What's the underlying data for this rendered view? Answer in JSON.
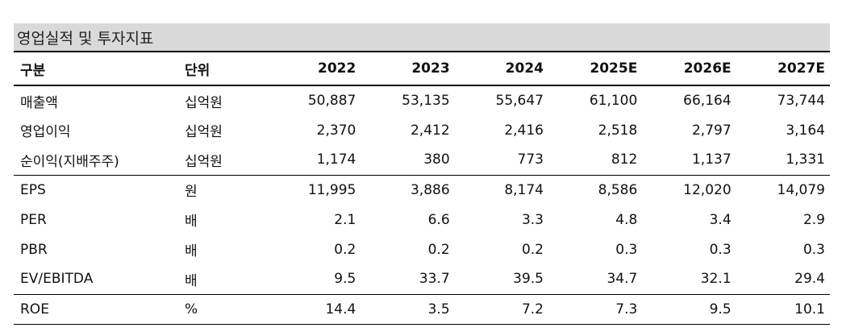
{
  "title": "영업실적 및 투자지표",
  "columns": [
    "구분",
    "단위",
    "2022",
    "2023",
    "2024",
    "2025E",
    "2026E",
    "2027E"
  ],
  "rows": [
    {
      "label": "매출액",
      "unit": "십억원",
      "values": [
        "50,887",
        "53,135",
        "55,647",
        "61,100",
        "66,164",
        "73,744"
      ]
    },
    {
      "label": "영업이익",
      "unit": "십억원",
      "values": [
        "2,370",
        "2,412",
        "2,416",
        "2,518",
        "2,797",
        "3,164"
      ]
    },
    {
      "label": "순이익(지배주주)",
      "unit": "십억원",
      "values": [
        "1,174",
        "380",
        "773",
        "812",
        "1,137",
        "1,331"
      ]
    },
    {
      "label": "EPS",
      "unit": "원",
      "values": [
        "11,995",
        "3,886",
        "8,174",
        "8,586",
        "12,020",
        "14,079"
      ]
    },
    {
      "label": "PER",
      "unit": "배",
      "values": [
        "2.1",
        "6.6",
        "3.3",
        "4.8",
        "3.4",
        "2.9"
      ]
    },
    {
      "label": "PBR",
      "unit": "배",
      "values": [
        "0.2",
        "0.2",
        "0.2",
        "0.3",
        "0.3",
        "0.3"
      ]
    },
    {
      "label": "EV/EBITDA",
      "unit": "배",
      "values": [
        "9.5",
        "33.7",
        "39.5",
        "34.7",
        "32.1",
        "29.4"
      ]
    },
    {
      "label": "ROE",
      "unit": "%",
      "values": [
        "14.4",
        "3.5",
        "7.2",
        "7.3",
        "9.5",
        "10.1"
      ]
    }
  ]
}
